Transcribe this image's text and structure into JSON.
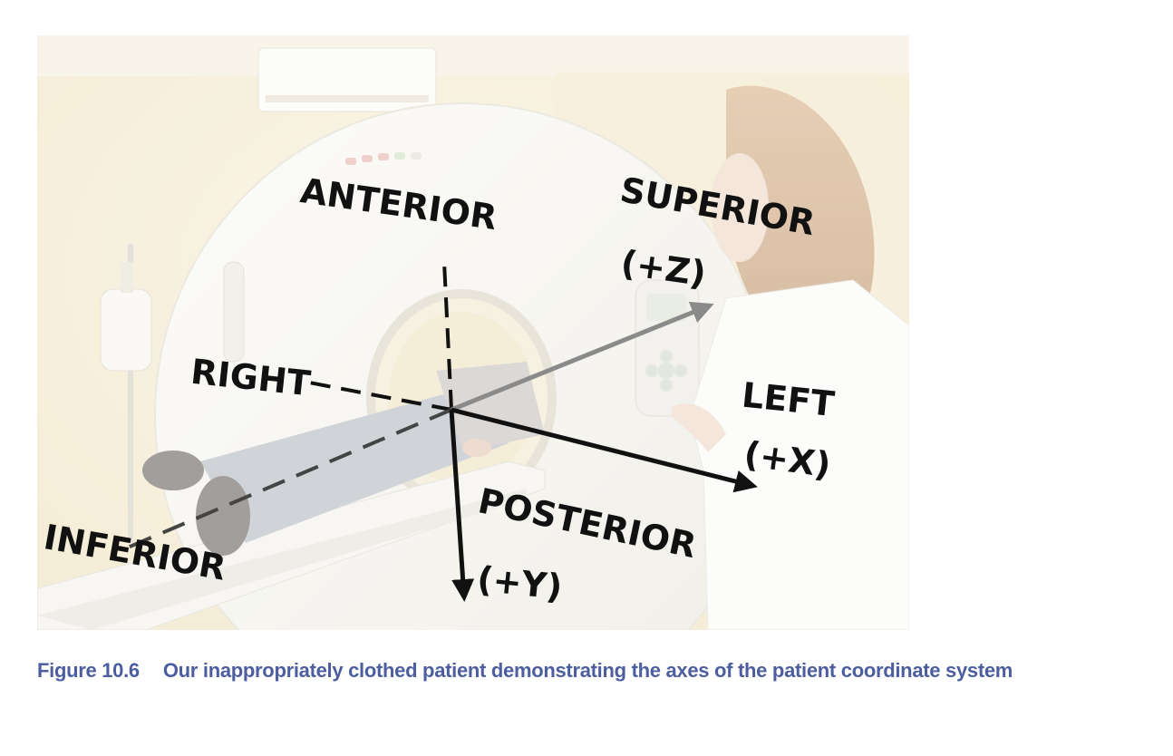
{
  "figure": {
    "photo_subject": "ct-scanner",
    "labels": {
      "anterior": "ANTERIOR",
      "superior": "SUPERIOR",
      "superior_axis": "(+Z)",
      "right": "RIGHT",
      "left": "LEFT",
      "left_axis": "(+X)",
      "posterior": "POSTERIOR",
      "posterior_axis": "(+Y)",
      "inferior": "INFERIOR"
    },
    "colors": {
      "axis_dark": "#111111",
      "axis_gray": "#8a8a8a",
      "caption": "#4d5ea0"
    }
  },
  "caption": {
    "number": "Figure 10.6",
    "text": "Our inappropriately clothed patient demonstrating the axes of the patient coordinate system"
  }
}
